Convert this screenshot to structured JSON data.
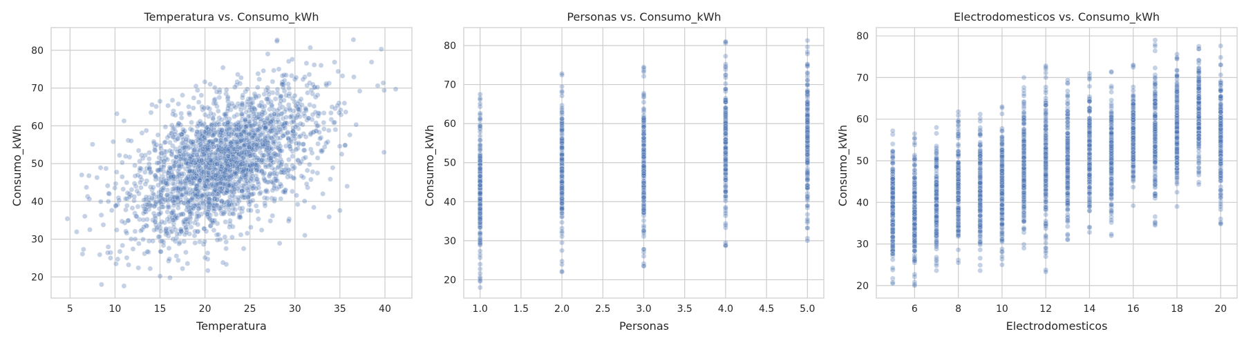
{
  "chart_data": [
    {
      "type": "scatter",
      "title": "Temperatura vs. Consumo_kWh",
      "xlabel": "Temperatura",
      "ylabel": "Consumo_kWh",
      "xlim": [
        2.9,
        43.0
      ],
      "ylim": [
        14.4,
        86.0
      ],
      "xticks": [
        5,
        10,
        15,
        20,
        25,
        30,
        35,
        40
      ],
      "yticks": [
        20,
        30,
        40,
        50,
        60,
        70,
        80
      ],
      "grid": true,
      "legend": "none",
      "color": "#4c72b0",
      "points": [
        [
          4.7,
          35.4
        ],
        [
          6.3,
          47.0
        ],
        [
          6.5,
          27.3
        ],
        [
          7.1,
          46.8
        ],
        [
          7.2,
          32.5
        ],
        [
          7.5,
          55.1
        ],
        [
          8.0,
          46.3
        ],
        [
          8.3,
          25.9
        ],
        [
          8.5,
          18.0
        ],
        [
          8.7,
          33.8
        ],
        [
          9.0,
          48.7
        ],
        [
          9.3,
          42.1
        ],
        [
          9.5,
          25.0
        ],
        [
          9.8,
          55.8
        ],
        [
          10.1,
          38.9
        ],
        [
          10.3,
          24.7
        ],
        [
          10.5,
          52.2
        ],
        [
          10.8,
          46.5
        ],
        [
          11.0,
          17.6
        ],
        [
          11.0,
          61.3
        ],
        [
          11.3,
          31.6
        ],
        [
          11.6,
          41.2
        ],
        [
          11.8,
          56.0
        ],
        [
          12.0,
          27.4
        ],
        [
          12.2,
          49.5
        ],
        [
          12.4,
          36.0
        ],
        [
          12.6,
          22.4
        ],
        [
          12.8,
          45.0
        ],
        [
          13.0,
          58.1
        ],
        [
          13.2,
          33.2
        ],
        [
          13.4,
          40.5
        ],
        [
          13.6,
          26.7
        ],
        [
          13.8,
          52.9
        ],
        [
          14.0,
          47.8
        ],
        [
          14.0,
          63.5
        ],
        [
          14.2,
          29.5
        ],
        [
          14.4,
          38.8
        ],
        [
          14.6,
          55.0
        ],
        [
          14.8,
          44.3
        ],
        [
          15.0,
          20.2
        ],
        [
          15.0,
          66.5
        ],
        [
          15.2,
          34.6
        ],
        [
          15.4,
          49.1
        ],
        [
          15.6,
          59.7
        ],
        [
          15.8,
          41.7
        ],
        [
          16.0,
          27.6
        ],
        [
          16.1,
          53.4
        ],
        [
          16.3,
          36.9
        ],
        [
          16.5,
          46.6
        ],
        [
          16.7,
          62.8
        ],
        [
          16.9,
          31.4
        ],
        [
          17.1,
          50.6
        ],
        [
          17.3,
          43.3
        ],
        [
          17.5,
          22.2
        ],
        [
          17.5,
          68.1
        ],
        [
          17.7,
          39.5
        ],
        [
          17.9,
          56.4
        ],
        [
          18.1,
          34.0
        ],
        [
          18.3,
          48.1
        ],
        [
          18.5,
          60.9
        ],
        [
          18.7,
          44.8
        ],
        [
          18.9,
          29.0
        ],
        [
          19.0,
          70.5
        ],
        [
          19.1,
          52.2
        ],
        [
          19.3,
          38.1
        ],
        [
          19.5,
          57.7
        ],
        [
          19.7,
          41.6
        ],
        [
          19.9,
          64.7
        ],
        [
          20.0,
          25.1
        ],
        [
          20.1,
          49.4
        ],
        [
          20.3,
          54.9
        ],
        [
          20.5,
          35.5
        ],
        [
          20.7,
          46.2
        ],
        [
          20.9,
          61.8
        ],
        [
          21.1,
          42.9
        ],
        [
          21.3,
          69.0
        ],
        [
          21.5,
          31.2
        ],
        [
          21.7,
          51.5
        ],
        [
          21.9,
          57.4
        ],
        [
          22.0,
          23.8
        ],
        [
          22.0,
          75.4
        ],
        [
          22.1,
          39.7
        ],
        [
          22.3,
          48.4
        ],
        [
          22.5,
          63.9
        ],
        [
          22.7,
          44.2
        ],
        [
          22.9,
          55.6
        ],
        [
          23.1,
          33.3
        ],
        [
          23.3,
          60.2
        ],
        [
          23.5,
          50.3
        ],
        [
          23.7,
          41.0
        ],
        [
          23.9,
          71.2
        ],
        [
          24.1,
          53.0
        ],
        [
          24.3,
          27.5
        ],
        [
          24.5,
          46.9
        ],
        [
          24.7,
          66.4
        ],
        [
          24.9,
          57.8
        ],
        [
          25.1,
          37.6
        ],
        [
          25.3,
          49.7
        ],
        [
          25.5,
          62.5
        ],
        [
          25.7,
          43.4
        ],
        [
          25.9,
          73.8
        ],
        [
          26.1,
          54.1
        ],
        [
          26.3,
          32.4
        ],
        [
          26.5,
          47.2
        ],
        [
          26.7,
          59.6
        ],
        [
          26.9,
          40.8
        ],
        [
          27.1,
          68.3
        ],
        [
          27.3,
          51.4
        ],
        [
          27.5,
          36.2
        ],
        [
          27.7,
          63.1
        ],
        [
          27.9,
          45.5
        ],
        [
          28.0,
          82.4
        ],
        [
          28.1,
          56.7
        ],
        [
          28.3,
          28.9
        ],
        [
          28.5,
          49.8
        ],
        [
          28.7,
          70.1
        ],
        [
          28.9,
          42.4
        ],
        [
          29.1,
          60.7
        ],
        [
          29.3,
          34.8
        ],
        [
          29.5,
          53.9
        ],
        [
          29.7,
          77.6
        ],
        [
          29.9,
          46.1
        ],
        [
          30.1,
          65.3
        ],
        [
          30.3,
          39.2
        ],
        [
          30.5,
          57.1
        ],
        [
          30.7,
          50.5
        ],
        [
          30.9,
          72.3
        ],
        [
          31.1,
          31.0
        ],
        [
          31.3,
          44.6
        ],
        [
          31.5,
          62.0
        ],
        [
          31.7,
          80.7
        ],
        [
          31.9,
          52.8
        ],
        [
          32.1,
          38.4
        ],
        [
          32.3,
          67.6
        ],
        [
          32.5,
          47.5
        ],
        [
          32.7,
          58.3
        ],
        [
          32.9,
          76.0
        ],
        [
          33.1,
          42.0
        ],
        [
          33.3,
          54.4
        ],
        [
          33.5,
          70.7
        ],
        [
          33.8,
          35.9
        ],
        [
          34.0,
          63.4
        ],
        [
          34.2,
          48.9
        ],
        [
          34.5,
          59.0
        ],
        [
          34.8,
          74.4
        ],
        [
          35.0,
          37.6
        ],
        [
          35.2,
          52.5
        ],
        [
          35.5,
          66.0
        ],
        [
          35.8,
          44.0
        ],
        [
          36.1,
          57.6
        ],
        [
          36.5,
          82.8
        ],
        [
          36.8,
          60.3
        ],
        [
          37.2,
          69.2
        ],
        [
          39.2,
          70.6
        ],
        [
          39.6,
          80.3
        ],
        [
          39.9,
          53.0
        ],
        [
          41.2,
          69.7
        ]
      ],
      "point_count_note": ""
    },
    {
      "type": "scatter",
      "title": "Personas vs. Consumo_kWh",
      "xlabel": "Personas",
      "ylabel": "Consumo_kWh",
      "xlim": [
        0.8,
        5.2
      ],
      "ylim": [
        15.3,
        84.6
      ],
      "xticks": [
        1.0,
        1.5,
        2.0,
        2.5,
        3.0,
        3.5,
        4.0,
        4.5,
        5.0
      ],
      "yticks": [
        20,
        30,
        40,
        50,
        60,
        70,
        80
      ],
      "grid": true,
      "legend": "none",
      "color": "#4c72b0",
      "columns": [
        {
          "x": 1.0,
          "min": 18.0,
          "max": 67.5
        },
        {
          "x": 2.0,
          "min": 22.0,
          "max": 72.8
        },
        {
          "x": 3.0,
          "min": 23.5,
          "max": 74.5
        },
        {
          "x": 4.0,
          "min": 28.7,
          "max": 81.0
        },
        {
          "x": 5.0,
          "min": 30.0,
          "max": 81.3
        }
      ]
    },
    {
      "type": "scatter",
      "title": "Electrodomesticos vs. Consumo_kWh",
      "xlabel": "Electrodomesticos",
      "ylabel": "Consumo_kWh",
      "xlim": [
        4.25,
        20.75
      ],
      "ylim": [
        17.0,
        82.0
      ],
      "xticks": [
        6,
        8,
        10,
        12,
        14,
        16,
        18,
        20
      ],
      "yticks": [
        20,
        30,
        40,
        50,
        60,
        70,
        80
      ],
      "grid": true,
      "legend": "none",
      "color": "#4c72b0",
      "columns": [
        {
          "x": 5,
          "min": 20.5,
          "max": 57.2
        },
        {
          "x": 6,
          "min": 20.0,
          "max": 56.5
        },
        {
          "x": 7,
          "min": 23.6,
          "max": 58.0
        },
        {
          "x": 8,
          "min": 25.5,
          "max": 61.8
        },
        {
          "x": 9,
          "min": 23.6,
          "max": 61.2
        },
        {
          "x": 10,
          "min": 25.0,
          "max": 63.0
        },
        {
          "x": 11,
          "min": 29.0,
          "max": 70.0
        },
        {
          "x": 12,
          "min": 23.3,
          "max": 72.8
        },
        {
          "x": 13,
          "min": 31.0,
          "max": 69.4
        },
        {
          "x": 14,
          "min": 32.8,
          "max": 71.0
        },
        {
          "x": 15,
          "min": 32.0,
          "max": 71.4
        },
        {
          "x": 16,
          "min": 39.2,
          "max": 73.0
        },
        {
          "x": 17,
          "min": 34.5,
          "max": 79.0
        },
        {
          "x": 18,
          "min": 39.0,
          "max": 75.6
        },
        {
          "x": 19,
          "min": 44.3,
          "max": 77.5
        },
        {
          "x": 20,
          "min": 34.8,
          "max": 77.6
        }
      ]
    }
  ]
}
